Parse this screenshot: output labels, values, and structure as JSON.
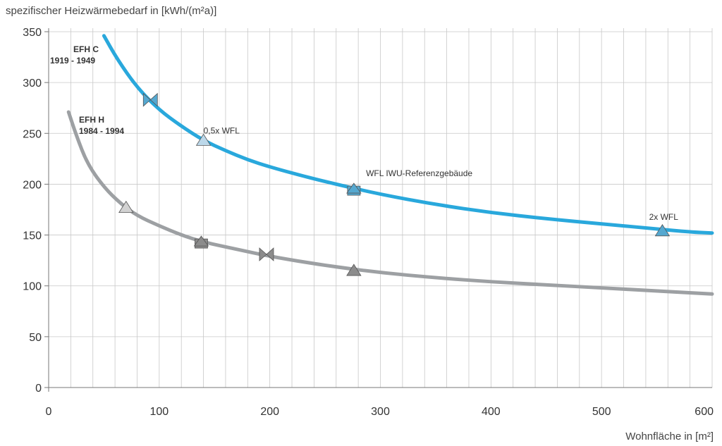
{
  "chart_data": {
    "type": "line",
    "ylabel": "spezifischer Heizwärmebedarf in [kWh/(m²a)]",
    "xlabel": "Wohnfläche in [m²]",
    "xlim": [
      0,
      600
    ],
    "ylim": [
      0,
      350
    ],
    "x_ticks": [
      0,
      100,
      200,
      300,
      400,
      500,
      600
    ],
    "y_ticks": [
      0,
      50,
      100,
      150,
      200,
      250,
      300,
      350
    ],
    "x_grid_step": 20,
    "grid": true,
    "series": [
      {
        "name": "EFH C 1919 - 1949",
        "label_lines": [
          "EFH C",
          "1919 - 1949"
        ],
        "color": "#29a8dc",
        "marker_fill": "#55a8d0",
        "marker_fill_light": "#bcd8ea",
        "x": [
          50,
          62,
          80,
          100,
          120,
          140,
          160,
          180,
          200,
          230,
          260,
          300,
          350,
          400,
          450,
          500,
          550,
          580,
          600
        ],
        "y": [
          346,
          323,
          295,
          273,
          257,
          243,
          233,
          224,
          217,
          208,
          200,
          190,
          180,
          172,
          166,
          161,
          156,
          153,
          152
        ],
        "markers": [
          {
            "type": "bowtie",
            "x": 92,
            "y": 283
          },
          {
            "type": "triangle",
            "x": 140,
            "y": 243,
            "light": true
          },
          {
            "type": "square-triangle",
            "x": 276,
            "y": 194
          },
          {
            "type": "triangle",
            "x": 555,
            "y": 154
          }
        ]
      },
      {
        "name": "EFH H 1984 - 1994",
        "label_lines": [
          "EFH H",
          "1984 - 1994"
        ],
        "color": "#9da0a3",
        "marker_fill": "#8c8c8c",
        "marker_fill_light": "#d2d2d2",
        "x": [
          18,
          25,
          35,
          50,
          65,
          80,
          100,
          120,
          140,
          170,
          200,
          250,
          300,
          350,
          400,
          450,
          500,
          550,
          600
        ],
        "y": [
          271,
          248,
          220,
          197,
          181,
          169,
          159,
          150,
          143,
          136,
          129,
          120,
          113,
          108,
          104,
          101,
          98,
          95,
          92
        ],
        "markers": [
          {
            "type": "triangle",
            "x": 70,
            "y": 177,
            "light": true
          },
          {
            "type": "square-triangle",
            "x": 138,
            "y": 142
          },
          {
            "type": "bowtie",
            "x": 197,
            "y": 131
          },
          {
            "type": "triangle",
            "x": 276,
            "y": 115
          }
        ]
      }
    ],
    "annotations": [
      {
        "text": "0,5x WFL",
        "x": 140,
        "y": 250
      },
      {
        "text": "WFL IWU-Referenzgebäude",
        "x": 287,
        "y": 208
      },
      {
        "text": "2x WFL",
        "x": 543,
        "y": 165
      }
    ]
  }
}
